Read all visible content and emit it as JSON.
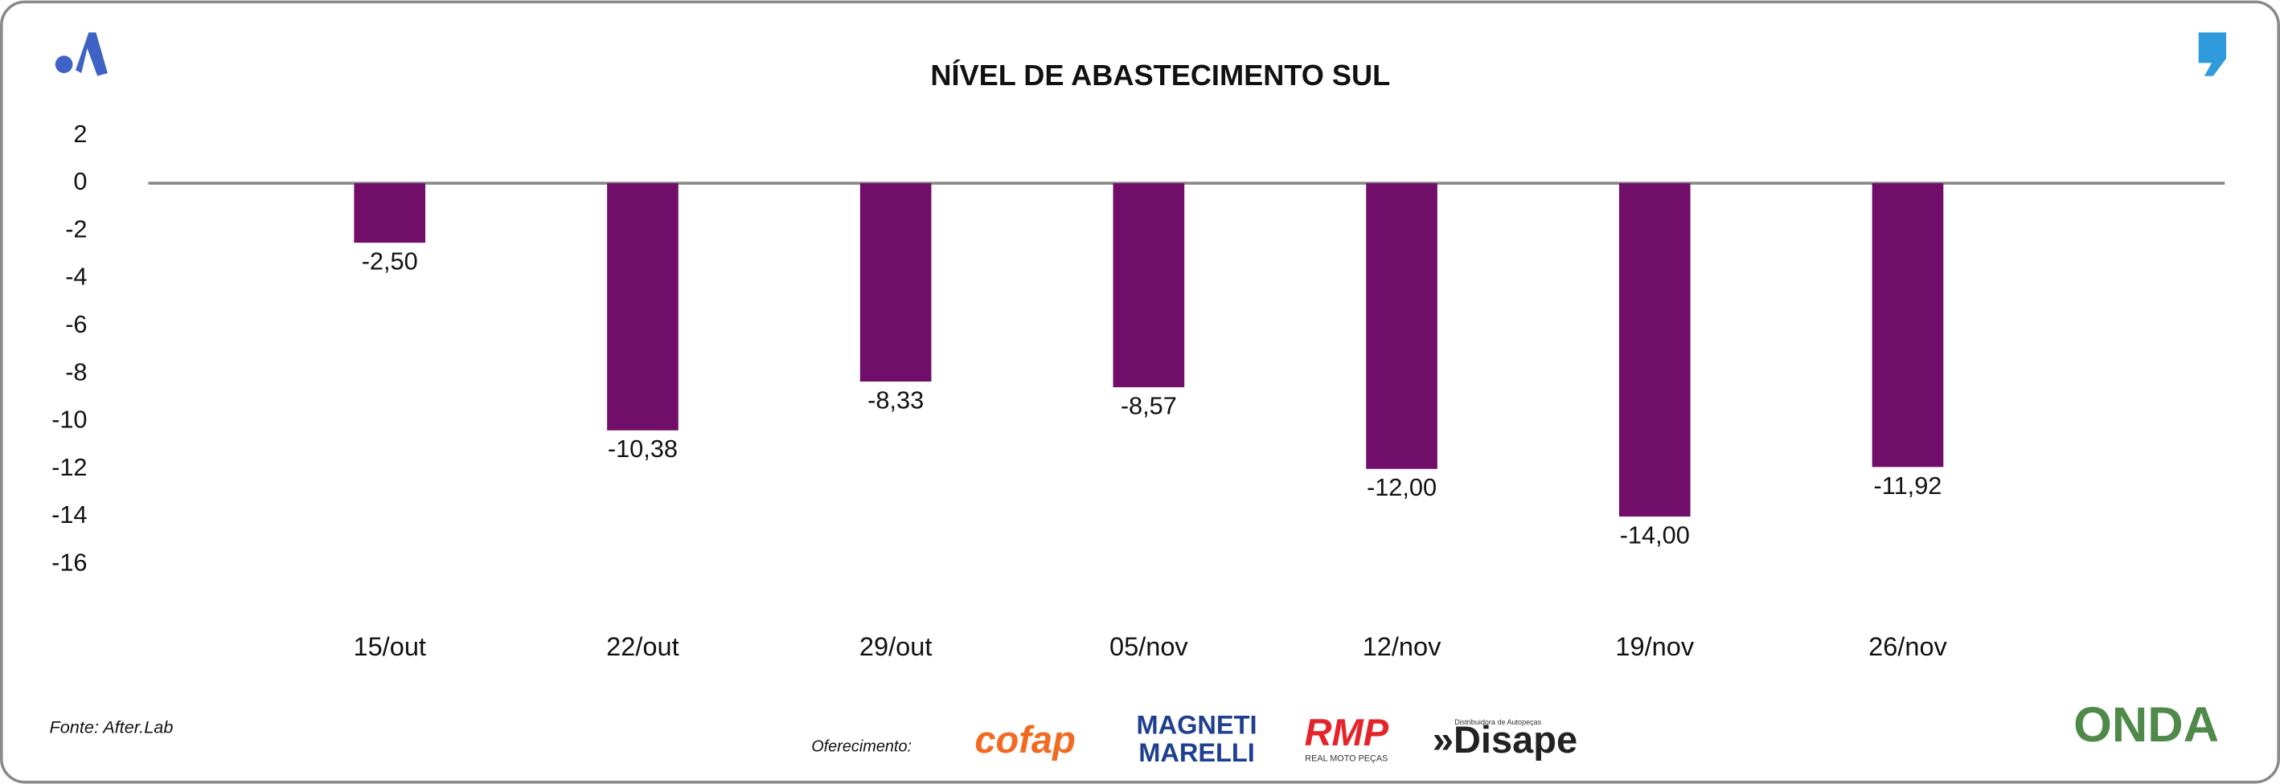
{
  "chart_data": {
    "type": "bar",
    "title": "NÍVEL DE ABASTECIMENTO SUL",
    "categories": [
      "15/out",
      "22/out",
      "29/out",
      "05/nov",
      "12/nov",
      "19/nov",
      "26/nov"
    ],
    "values": [
      -2.5,
      -10.38,
      -8.33,
      -8.57,
      -12,
      -14,
      -11.92
    ],
    "value_labels": [
      "-2,50",
      "-10,38",
      "-8,33",
      "-8,57",
      "-12,00",
      "-14,00",
      "-11,92"
    ],
    "color": "#700e6a",
    "ylim": [
      -16,
      2
    ],
    "yticks": [
      2,
      0,
      -2,
      -4,
      -6,
      -8,
      -10,
      -12,
      -14,
      -16
    ],
    "grid": false
  },
  "footer": {
    "source": "Fonte: After.Lab",
    "sponsor_label": "Oferecimento:",
    "sponsors": {
      "cofap": "cofap",
      "magneti": "MAGNETI",
      "marelli": "MARELLI",
      "rmp": "RMP",
      "rmp_sub": "REAL MOTO PEÇAS",
      "disape_sub": "Distribuidora de Autopeças",
      "disape": "»Disape",
      "onda": "ONDA"
    }
  }
}
